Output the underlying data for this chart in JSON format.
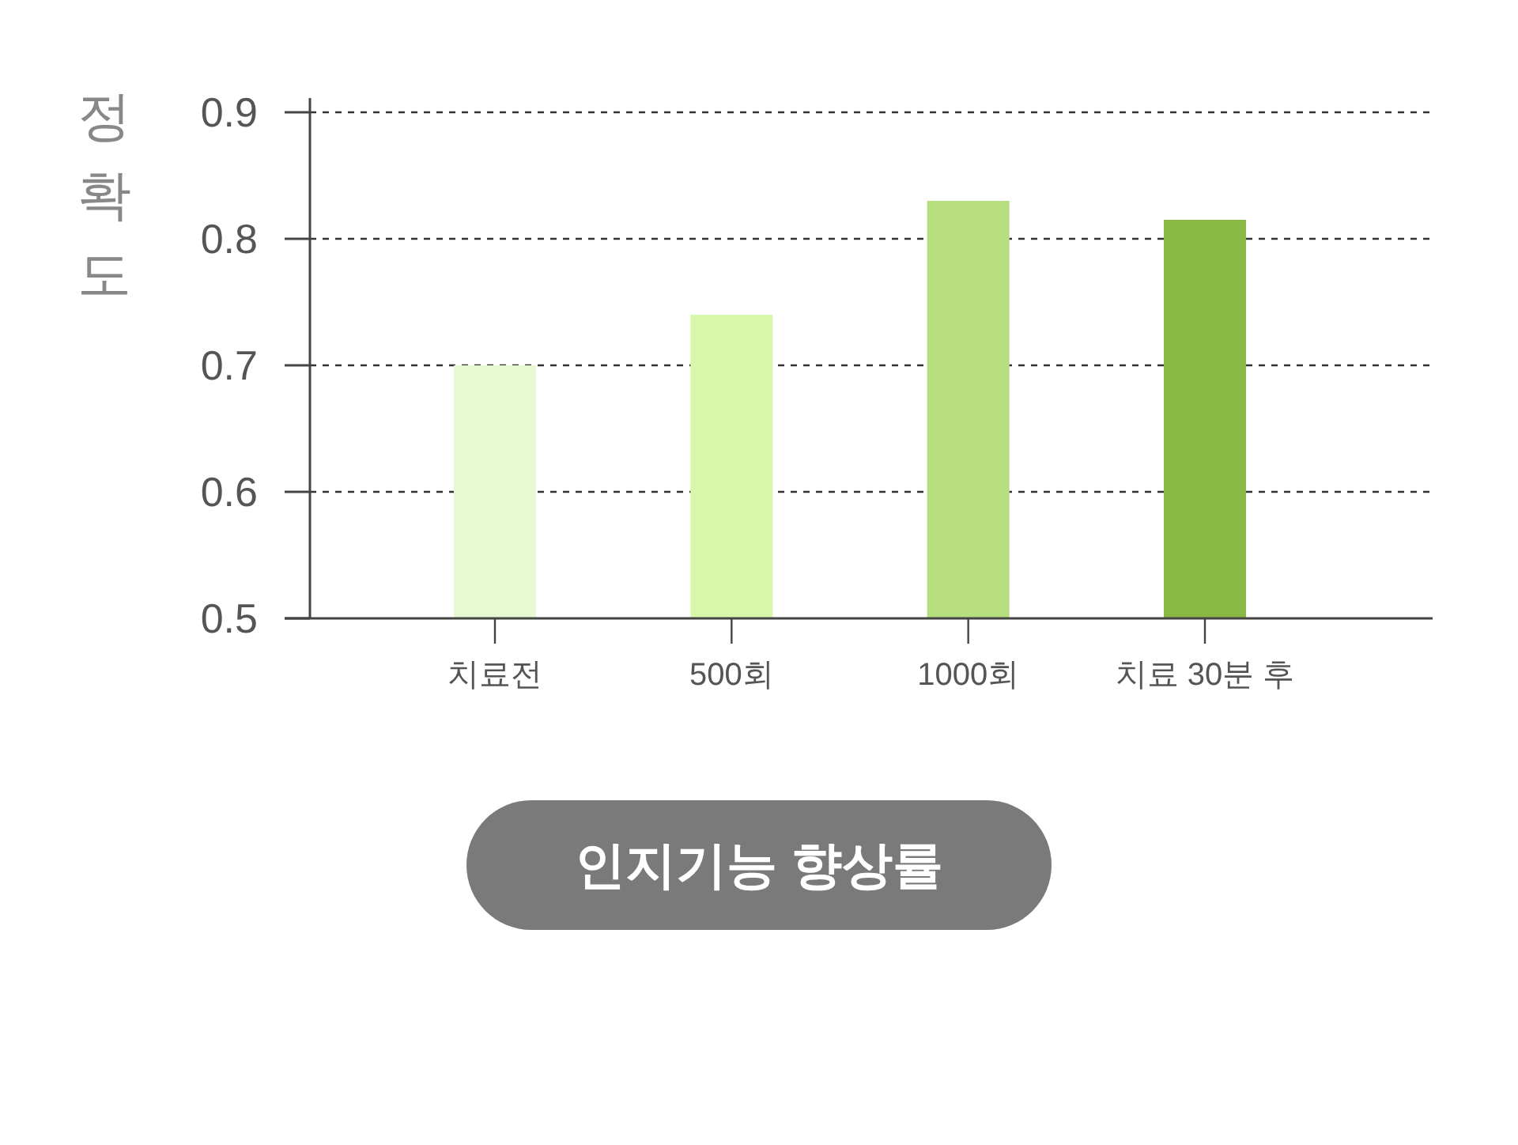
{
  "chart_data": {
    "type": "bar",
    "title": "인지기능 향상률",
    "ylabel": "정확도",
    "categories": [
      "치료전",
      "500회",
      "1000회",
      "치료 30분 후"
    ],
    "values": [
      0.7,
      0.74,
      0.83,
      0.815
    ],
    "colors": [
      "#e6f9d3",
      "#d7f7ab",
      "#b6dd7e",
      "#88b944"
    ],
    "ylim": [
      0.5,
      0.9
    ],
    "yticks": [
      0.5,
      0.6,
      0.7,
      0.8,
      0.9
    ],
    "grid": "y"
  }
}
